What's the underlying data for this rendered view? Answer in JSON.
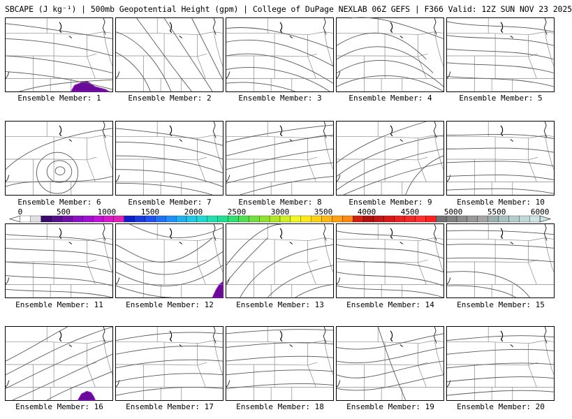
{
  "title": "SBCAPE (J kg⁻¹) | 500mb Geopotential Height (gpm) | College of DuPage NEXLAB 06Z GEFS | F366 Valid: 12Z SUN NOV 23 2025",
  "panels": [
    {
      "label": "Ensemble Member: 1",
      "variant": 0,
      "blob": "bottom-center"
    },
    {
      "label": "Ensemble Member: 2",
      "variant": 1,
      "blob": null
    },
    {
      "label": "Ensemble Member: 3",
      "variant": 2,
      "blob": null
    },
    {
      "label": "Ensemble Member: 4",
      "variant": 3,
      "blob": null
    },
    {
      "label": "Ensemble Member: 5",
      "variant": 4,
      "blob": null
    },
    {
      "label": "Ensemble Member: 6",
      "variant": 5,
      "blob": null
    },
    {
      "label": "Ensemble Member: 7",
      "variant": 6,
      "blob": null
    },
    {
      "label": "Ensemble Member: 8",
      "variant": 7,
      "blob": null
    },
    {
      "label": "Ensemble Member: 9",
      "variant": 8,
      "blob": null
    },
    {
      "label": "Ensemble Member: 10",
      "variant": 9,
      "blob": null
    },
    {
      "label": "Ensemble Member: 11",
      "variant": 10,
      "blob": null
    },
    {
      "label": "Ensemble Member: 12",
      "variant": 11,
      "blob": "bottom-right"
    },
    {
      "label": "Ensemble Member: 13",
      "variant": 12,
      "blob": null
    },
    {
      "label": "Ensemble Member: 14",
      "variant": 13,
      "blob": null
    },
    {
      "label": "Ensemble Member: 15",
      "variant": 14,
      "blob": null
    },
    {
      "label": "Ensemble Member: 16",
      "variant": 15,
      "blob": "bottom-right-mid"
    },
    {
      "label": "Ensemble Member: 17",
      "variant": 16,
      "blob": null
    },
    {
      "label": "Ensemble Member: 18",
      "variant": 17,
      "blob": null
    },
    {
      "label": "Ensemble Member: 19",
      "variant": 18,
      "blob": null
    },
    {
      "label": "Ensemble Member: 20",
      "variant": 19,
      "blob": null
    }
  ],
  "colorbar": {
    "ticks": [
      "0",
      "500",
      "1000",
      "1500",
      "2000",
      "2500",
      "3000",
      "3500",
      "4000",
      "4500",
      "5000",
      "5500",
      "6000"
    ],
    "colors": [
      "#ffffff",
      "#e0e0e0",
      "#3a0a6e",
      "#55108a",
      "#7010a8",
      "#8a10c0",
      "#a010d0",
      "#c010d8",
      "#d818c8",
      "#e020b8",
      "#1020c8",
      "#1838e0",
      "#2050f0",
      "#2070f8",
      "#2090f8",
      "#20b0f0",
      "#20c8e8",
      "#20d8d0",
      "#20e0b0",
      "#20e090",
      "#30e070",
      "#50e050",
      "#70e040",
      "#90e030",
      "#b0e828",
      "#d0f020",
      "#f0f820",
      "#ffe818",
      "#ffd010",
      "#ffb810",
      "#ffa010",
      "#ff8810",
      "#d02010",
      "#b01010",
      "#c01818",
      "#d81818",
      "#e82020",
      "#f02828",
      "#ff3030",
      "#ff2020",
      "#707070",
      "#808080",
      "#8c8c8c",
      "#989898",
      "#a4a4a4",
      "#9cb0b0",
      "#a8c0c0",
      "#b4cccc",
      "#c0d8d8",
      "#cce4e4"
    ]
  },
  "blob_color": "#6a0a9a",
  "blob_outline": "#9a20c8"
}
